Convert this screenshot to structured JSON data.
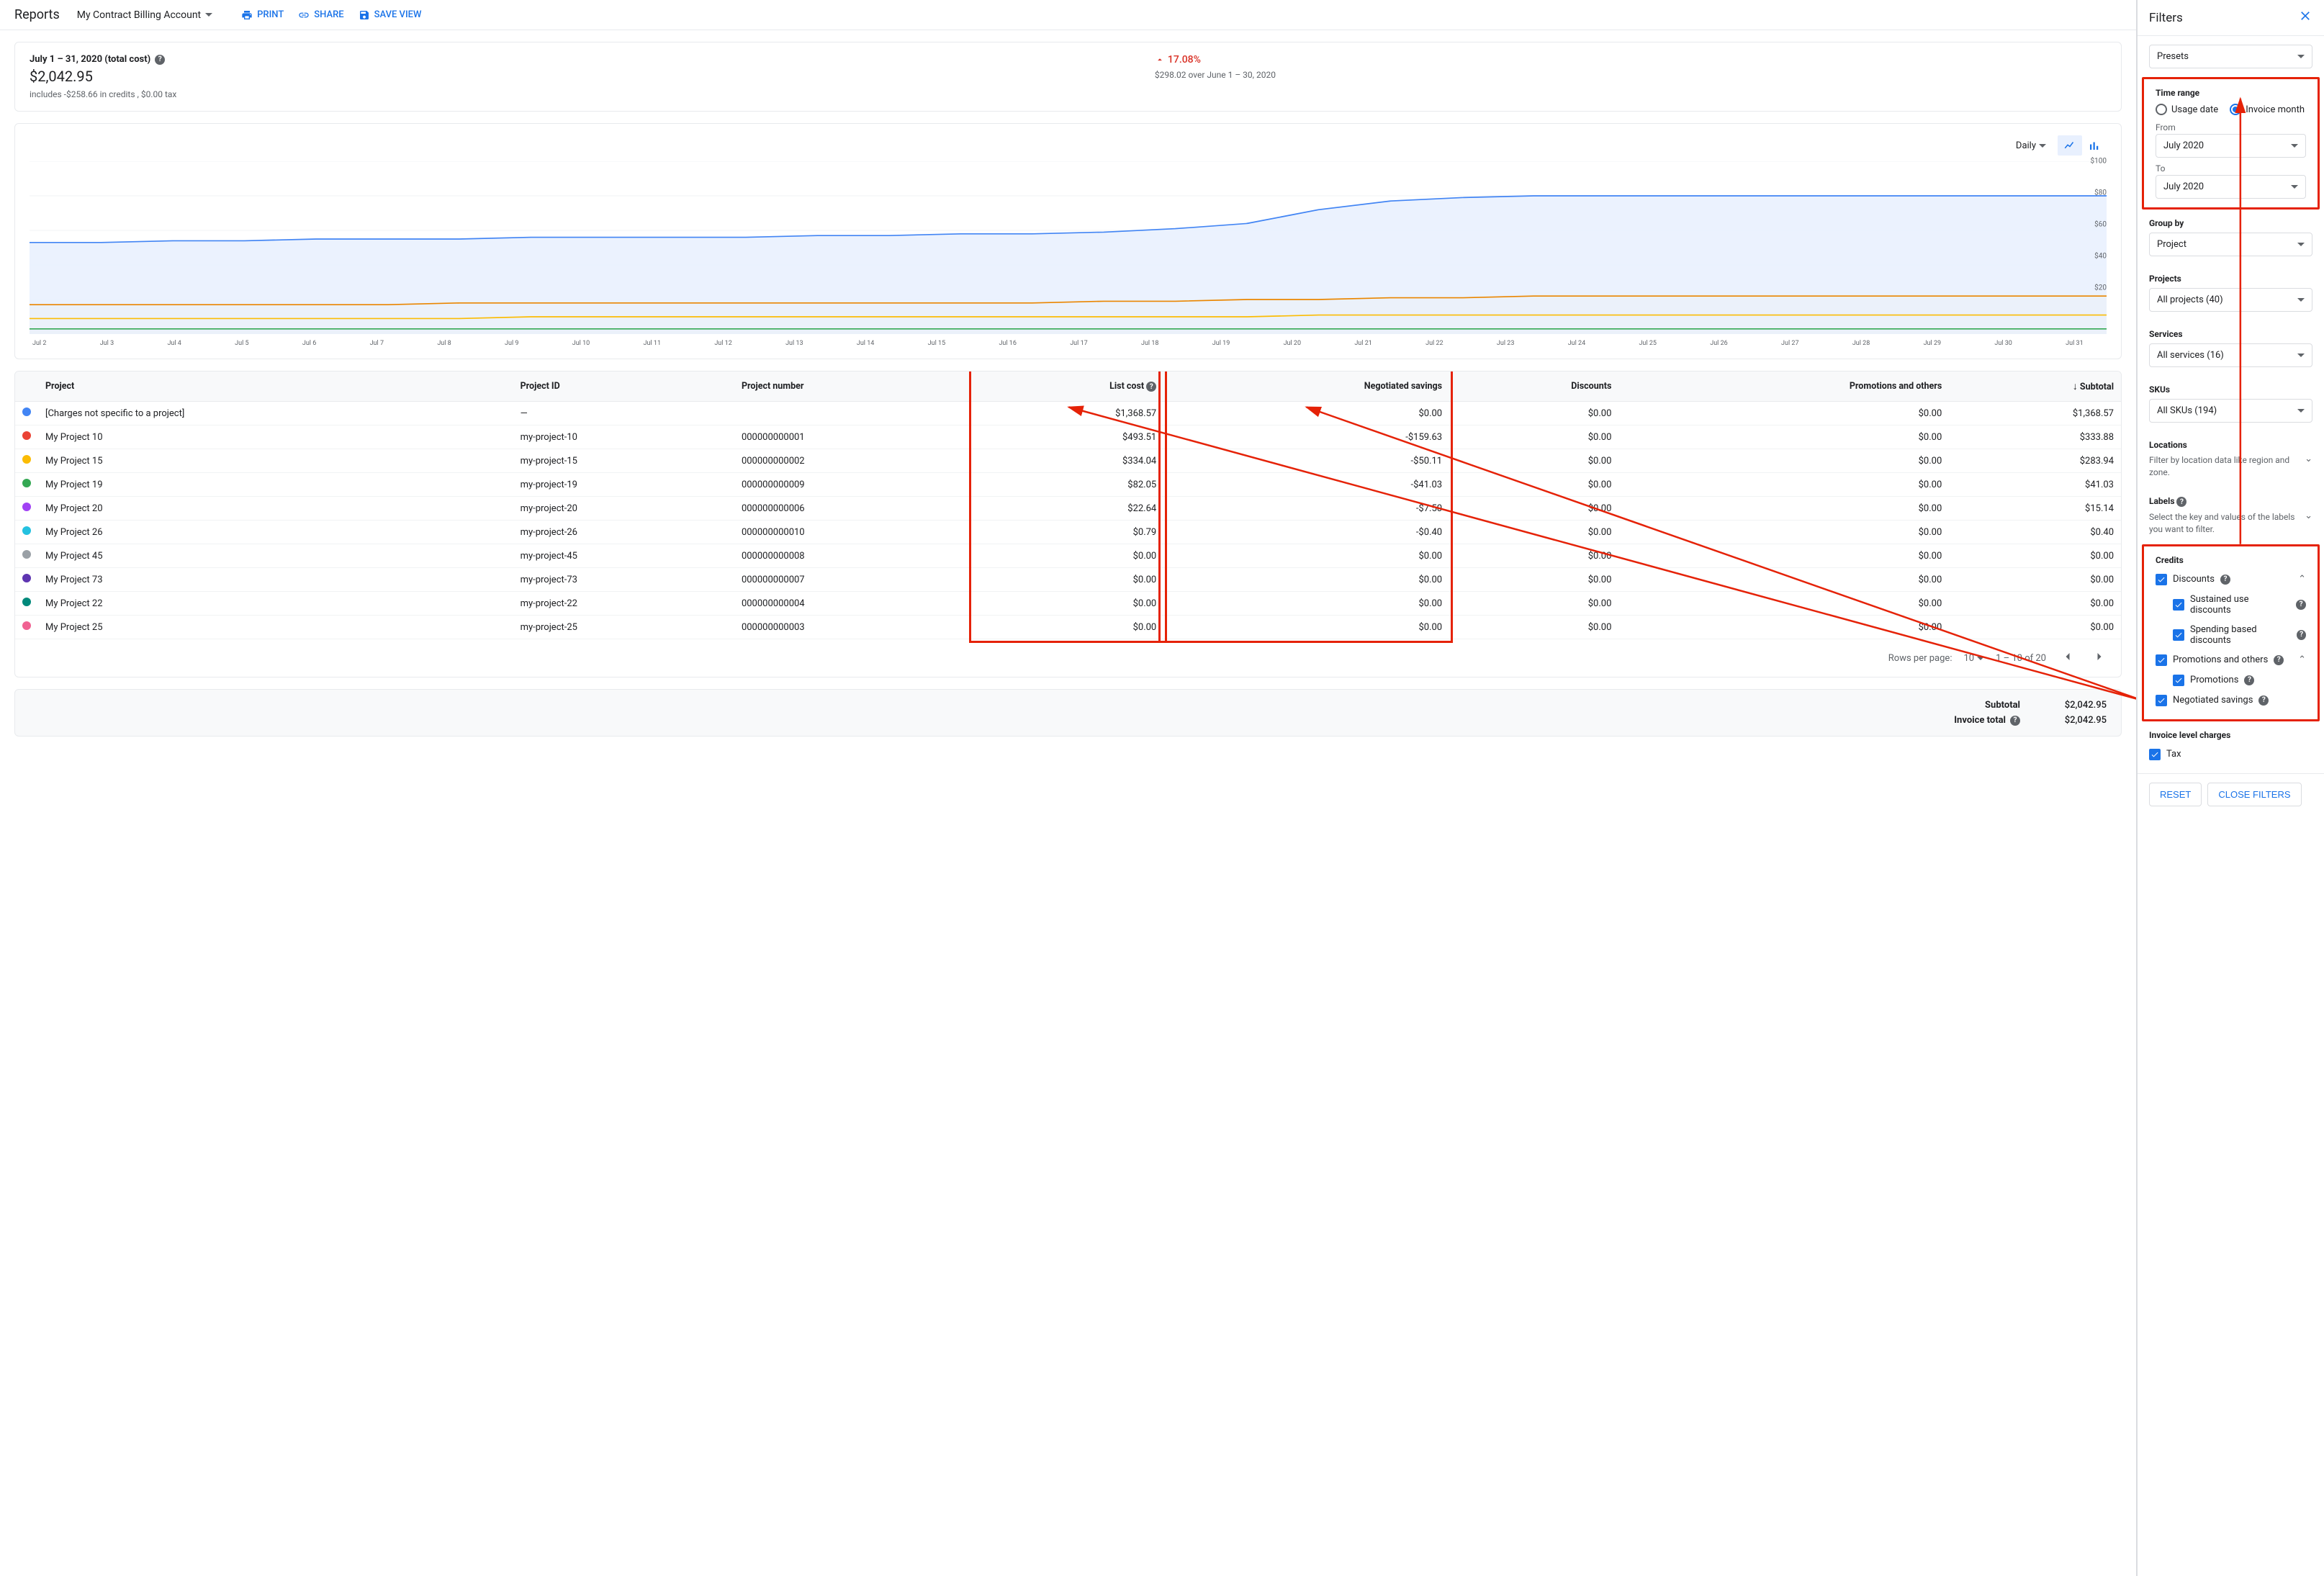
{
  "header": {
    "title": "Reports",
    "account": "My Contract Billing Account",
    "print": "PRINT",
    "share": "SHARE",
    "save": "SAVE VIEW"
  },
  "summary": {
    "period": "July 1 – 31, 2020 (total cost)",
    "total": "$2,042.95",
    "includes": "includes -$258.66 in credits , $0.00 tax",
    "delta_pct": "17.08%",
    "delta_sub": "$298.02 over June 1 – 30, 2020"
  },
  "chart": {
    "freq": "Daily",
    "ymax": 100,
    "yticks": [
      "$100",
      "$80",
      "$60",
      "$40",
      "$20"
    ],
    "xlabels": [
      "Jul 2",
      "Jul 3",
      "Jul 4",
      "Jul 5",
      "Jul 6",
      "Jul 7",
      "Jul 8",
      "Jul 9",
      "Jul 10",
      "Jul 11",
      "Jul 12",
      "Jul 13",
      "Jul 14",
      "Jul 15",
      "Jul 16",
      "Jul 17",
      "Jul 18",
      "Jul 19",
      "Jul 20",
      "Jul 21",
      "Jul 22",
      "Jul 23",
      "Jul 24",
      "Jul 25",
      "Jul 26",
      "Jul 27",
      "Jul 28",
      "Jul 29",
      "Jul 30",
      "Jul 31"
    ],
    "series": [
      {
        "color": "#4285f4",
        "fill": "#e8f0fe",
        "values": [
          53,
          53,
          54,
          54,
          55,
          55,
          55,
          56,
          56,
          56,
          56,
          57,
          57,
          58,
          58,
          59,
          61,
          64,
          72,
          77,
          79,
          80,
          80,
          80,
          80,
          80,
          80,
          80,
          80,
          80
        ]
      },
      {
        "color": "#ea8600",
        "fill": "#fef7e0",
        "values": [
          17,
          17,
          17,
          17,
          17,
          17,
          18,
          18,
          18,
          18,
          18,
          18,
          18,
          18,
          18,
          19,
          19,
          20,
          20,
          21,
          21,
          22,
          22,
          22,
          22,
          22,
          22,
          22,
          22,
          22
        ]
      },
      {
        "color": "#fbbc04",
        "fill": "#fef7e0",
        "values": [
          9,
          9,
          9,
          9,
          9,
          9,
          9,
          10,
          10,
          10,
          10,
          10,
          10,
          10,
          10,
          10,
          10,
          10,
          11,
          11,
          11,
          11,
          11,
          11,
          11,
          11,
          11,
          11,
          11,
          11
        ]
      },
      {
        "color": "#34a853",
        "fill": "#e6f4ea",
        "values": [
          3,
          3,
          3,
          3,
          3,
          3,
          3,
          3,
          3,
          3,
          3,
          3,
          3,
          3,
          3,
          3,
          3,
          3,
          3,
          3,
          3,
          3,
          3,
          3,
          3,
          3,
          3,
          3,
          3,
          3
        ]
      }
    ],
    "grid_color": "#f1f3f4"
  },
  "table": {
    "columns": [
      "",
      "Project",
      "Project ID",
      "Project number",
      "List cost",
      "Negotiated savings",
      "Discounts",
      "Promotions and others",
      "Subtotal"
    ],
    "rows": [
      {
        "color": "#4285f4",
        "project": "[Charges not specific to a project]",
        "pid": "—",
        "pnum": "",
        "list": "$1,368.57",
        "neg": "$0.00",
        "disc": "$0.00",
        "promo": "$0.00",
        "sub": "$1,368.57"
      },
      {
        "color": "#ea4335",
        "project": "My Project 10",
        "pid": "my-project-10",
        "pnum": "000000000001",
        "list": "$493.51",
        "neg": "-$159.63",
        "disc": "$0.00",
        "promo": "$0.00",
        "sub": "$333.88"
      },
      {
        "color": "#fbbc04",
        "project": "My Project 15",
        "pid": "my-project-15",
        "pnum": "000000000002",
        "list": "$334.04",
        "neg": "-$50.11",
        "disc": "$0.00",
        "promo": "$0.00",
        "sub": "$283.94"
      },
      {
        "color": "#34a853",
        "project": "My Project 19",
        "pid": "my-project-19",
        "pnum": "000000000009",
        "list": "$82.05",
        "neg": "-$41.03",
        "disc": "$0.00",
        "promo": "$0.00",
        "sub": "$41.03"
      },
      {
        "color": "#a142f4",
        "project": "My Project 20",
        "pid": "my-project-20",
        "pnum": "000000000006",
        "list": "$22.64",
        "neg": "-$7.50",
        "disc": "$0.00",
        "promo": "$0.00",
        "sub": "$15.14"
      },
      {
        "color": "#24c1e0",
        "project": "My Project 26",
        "pid": "my-project-26",
        "pnum": "000000000010",
        "list": "$0.79",
        "neg": "-$0.40",
        "disc": "$0.00",
        "promo": "$0.00",
        "sub": "$0.40"
      },
      {
        "color": "#9aa0a6",
        "project": "My Project 45",
        "pid": "my-project-45",
        "pnum": "000000000008",
        "list": "$0.00",
        "neg": "$0.00",
        "disc": "$0.00",
        "promo": "$0.00",
        "sub": "$0.00"
      },
      {
        "color": "#5e35b1",
        "project": "My Project 73",
        "pid": "my-project-73",
        "pnum": "000000000007",
        "list": "$0.00",
        "neg": "$0.00",
        "disc": "$0.00",
        "promo": "$0.00",
        "sub": "$0.00"
      },
      {
        "color": "#00897b",
        "project": "My Project 22",
        "pid": "my-project-22",
        "pnum": "000000000004",
        "list": "$0.00",
        "neg": "$0.00",
        "disc": "$0.00",
        "promo": "$0.00",
        "sub": "$0.00"
      },
      {
        "color": "#f06292",
        "project": "My Project 25",
        "pid": "my-project-25",
        "pnum": "000000000003",
        "list": "$0.00",
        "neg": "$0.00",
        "disc": "$0.00",
        "promo": "$0.00",
        "sub": "$0.00"
      }
    ],
    "pagination": {
      "rpp_label": "Rows per page:",
      "rpp": "10",
      "range": "1 – 10 of 20"
    }
  },
  "totals": {
    "subtotal_label": "Subtotal",
    "subtotal": "$2,042.95",
    "invoice_label": "Invoice total",
    "invoice": "$2,042.95"
  },
  "filters": {
    "title": "Filters",
    "presets": "Presets",
    "time_range": "Time range",
    "usage_date": "Usage date",
    "invoice_month": "Invoice month",
    "from_label": "From",
    "from": "July 2020",
    "to_label": "To",
    "to": "July 2020",
    "groupby_label": "Group by",
    "groupby": "Project",
    "projects_label": "Projects",
    "projects": "All projects (40)",
    "services_label": "Services",
    "services": "All services (16)",
    "skus_label": "SKUs",
    "skus": "All SKUs (194)",
    "locations": "Locations",
    "locations_sub": "Filter by location data like region and zone.",
    "labels": "Labels",
    "labels_sub": "Select the key and values of the labels you want to filter.",
    "credits": "Credits",
    "discounts": "Discounts",
    "sustained": "Sustained use discounts",
    "spending": "Spending based discounts",
    "promos": "Promotions and others",
    "promotions": "Promotions",
    "negotiated": "Negotiated savings",
    "invoice_charges": "Invoice level charges",
    "tax": "Tax",
    "reset": "RESET",
    "close": "CLOSE FILTERS"
  }
}
